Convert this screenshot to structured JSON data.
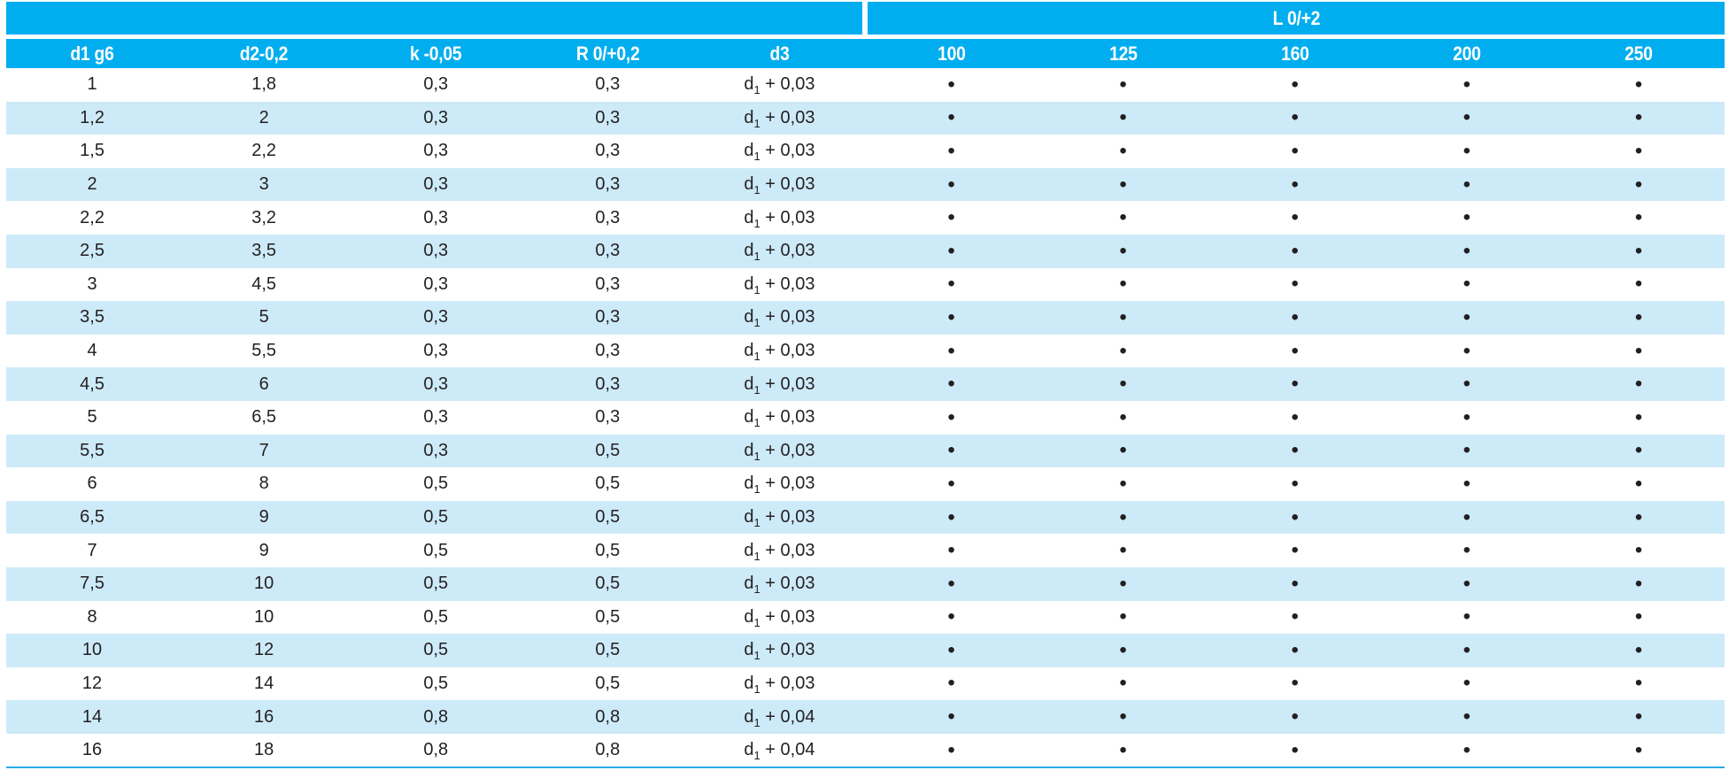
{
  "table": {
    "group_header": {
      "blank_label": "",
      "l_label": "L 0/+2"
    },
    "columns": [
      "d1 g6",
      "d2-0,2",
      "k -0,05",
      "R 0/+0,2",
      "d3",
      "100",
      "125",
      "160",
      "200",
      "250"
    ],
    "l_sizes": [
      "100",
      "125",
      "160",
      "200",
      "250"
    ],
    "bullet_glyph": "•",
    "rows": [
      {
        "d1": "1",
        "d2": "1,8",
        "k": "0,3",
        "r": "0,3",
        "d3": {
          "var": "d",
          "sub": "1",
          "offset": "+ 0,03"
        },
        "l": [
          true,
          true,
          true,
          true,
          true
        ]
      },
      {
        "d1": "1,2",
        "d2": "2",
        "k": "0,3",
        "r": "0,3",
        "d3": {
          "var": "d",
          "sub": "1",
          "offset": "+ 0,03"
        },
        "l": [
          true,
          true,
          true,
          true,
          true
        ]
      },
      {
        "d1": "1,5",
        "d2": "2,2",
        "k": "0,3",
        "r": "0,3",
        "d3": {
          "var": "d",
          "sub": "1",
          "offset": "+ 0,03"
        },
        "l": [
          true,
          true,
          true,
          true,
          true
        ]
      },
      {
        "d1": "2",
        "d2": "3",
        "k": "0,3",
        "r": "0,3",
        "d3": {
          "var": "d",
          "sub": "1",
          "offset": "+ 0,03"
        },
        "l": [
          true,
          true,
          true,
          true,
          true
        ]
      },
      {
        "d1": "2,2",
        "d2": "3,2",
        "k": "0,3",
        "r": "0,3",
        "d3": {
          "var": "d",
          "sub": "1",
          "offset": "+ 0,03"
        },
        "l": [
          true,
          true,
          true,
          true,
          true
        ]
      },
      {
        "d1": "2,5",
        "d2": "3,5",
        "k": "0,3",
        "r": "0,3",
        "d3": {
          "var": "d",
          "sub": "1",
          "offset": "+ 0,03"
        },
        "l": [
          true,
          true,
          true,
          true,
          true
        ]
      },
      {
        "d1": "3",
        "d2": "4,5",
        "k": "0,3",
        "r": "0,3",
        "d3": {
          "var": "d",
          "sub": "1",
          "offset": "+ 0,03"
        },
        "l": [
          true,
          true,
          true,
          true,
          true
        ]
      },
      {
        "d1": "3,5",
        "d2": "5",
        "k": "0,3",
        "r": "0,3",
        "d3": {
          "var": "d",
          "sub": "1",
          "offset": "+ 0,03"
        },
        "l": [
          true,
          true,
          true,
          true,
          true
        ]
      },
      {
        "d1": "4",
        "d2": "5,5",
        "k": "0,3",
        "r": "0,3",
        "d3": {
          "var": "d",
          "sub": "1",
          "offset": "+ 0,03"
        },
        "l": [
          true,
          true,
          true,
          true,
          true
        ]
      },
      {
        "d1": "4,5",
        "d2": "6",
        "k": "0,3",
        "r": "0,3",
        "d3": {
          "var": "d",
          "sub": "1",
          "offset": "+ 0,03"
        },
        "l": [
          true,
          true,
          true,
          true,
          true
        ]
      },
      {
        "d1": "5",
        "d2": "6,5",
        "k": "0,3",
        "r": "0,3",
        "d3": {
          "var": "d",
          "sub": "1",
          "offset": "+ 0,03"
        },
        "l": [
          true,
          true,
          true,
          true,
          true
        ]
      },
      {
        "d1": "5,5",
        "d2": "7",
        "k": "0,3",
        "r": "0,5",
        "d3": {
          "var": "d",
          "sub": "1",
          "offset": "+ 0,03"
        },
        "l": [
          true,
          true,
          true,
          true,
          true
        ]
      },
      {
        "d1": "6",
        "d2": "8",
        "k": "0,5",
        "r": "0,5",
        "d3": {
          "var": "d",
          "sub": "1",
          "offset": "+ 0,03"
        },
        "l": [
          true,
          true,
          true,
          true,
          true
        ]
      },
      {
        "d1": "6,5",
        "d2": "9",
        "k": "0,5",
        "r": "0,5",
        "d3": {
          "var": "d",
          "sub": "1",
          "offset": "+ 0,03"
        },
        "l": [
          true,
          true,
          true,
          true,
          true
        ]
      },
      {
        "d1": "7",
        "d2": "9",
        "k": "0,5",
        "r": "0,5",
        "d3": {
          "var": "d",
          "sub": "1",
          "offset": "+ 0,03"
        },
        "l": [
          true,
          true,
          true,
          true,
          true
        ]
      },
      {
        "d1": "7,5",
        "d2": "10",
        "k": "0,5",
        "r": "0,5",
        "d3": {
          "var": "d",
          "sub": "1",
          "offset": "+ 0,03"
        },
        "l": [
          true,
          true,
          true,
          true,
          true
        ]
      },
      {
        "d1": "8",
        "d2": "10",
        "k": "0,5",
        "r": "0,5",
        "d3": {
          "var": "d",
          "sub": "1",
          "offset": "+ 0,03"
        },
        "l": [
          true,
          true,
          true,
          true,
          true
        ]
      },
      {
        "d1": "10",
        "d2": "12",
        "k": "0,5",
        "r": "0,5",
        "d3": {
          "var": "d",
          "sub": "1",
          "offset": "+ 0,03"
        },
        "l": [
          true,
          true,
          true,
          true,
          true
        ]
      },
      {
        "d1": "12",
        "d2": "14",
        "k": "0,5",
        "r": "0,5",
        "d3": {
          "var": "d",
          "sub": "1",
          "offset": "+ 0,03"
        },
        "l": [
          true,
          true,
          true,
          true,
          true
        ]
      },
      {
        "d1": "14",
        "d2": "16",
        "k": "0,8",
        "r": "0,8",
        "d3": {
          "var": "d",
          "sub": "1",
          "offset": "+ 0,04"
        },
        "l": [
          true,
          true,
          true,
          true,
          true
        ]
      },
      {
        "d1": "16",
        "d2": "18",
        "k": "0,8",
        "r": "0,8",
        "d3": {
          "var": "d",
          "sub": "1",
          "offset": "+ 0,04"
        },
        "l": [
          true,
          true,
          true,
          true,
          true
        ]
      }
    ]
  },
  "colors": {
    "header_blue": "#00AEEF",
    "row_stripe": "#CDEAF9",
    "bottom_rule": "#29ABE2",
    "text": "#231F20"
  }
}
